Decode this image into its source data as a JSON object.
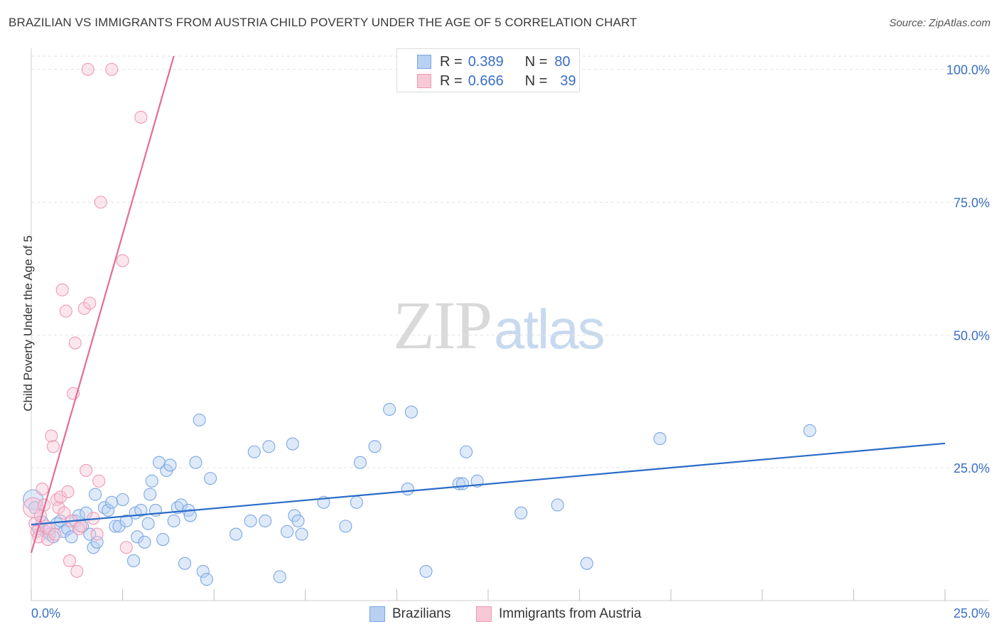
{
  "chart_data": {
    "type": "scatter",
    "title": "BRAZILIAN VS IMMIGRANTS FROM AUSTRIA CHILD POVERTY UNDER THE AGE OF 5 CORRELATION CHART",
    "source": "Source: ZipAtlas.com",
    "ylabel": "Child Poverty Under the Age of 5",
    "xlabel": "",
    "xlim": [
      0,
      25
    ],
    "ylim": [
      0,
      102.5
    ],
    "x_tick_labels": [
      "0.0%",
      "25.0%"
    ],
    "y_tick_labels": [
      "100.0%",
      "75.0%",
      "50.0%",
      "25.0%"
    ],
    "y_tick_values": [
      100,
      75,
      50,
      25
    ],
    "watermark": {
      "part1": "ZIP",
      "part2": "atlas"
    },
    "legend": {
      "r_label": "R =",
      "n_label": "N =",
      "entries": [
        {
          "name": "Brazilians",
          "r": "0.389",
          "n": "80",
          "color": "#7ba7e6",
          "fill": "#b8d0f2"
        },
        {
          "name": "Immigrants from Austria",
          "r": "0.666",
          "n": "39",
          "color": "#ee9ab5",
          "fill": "#f8c8d7"
        }
      ]
    },
    "series": [
      {
        "name": "Brazilians",
        "color": "#7ba7e6",
        "trend": {
          "x1": 0.0,
          "y1": 14.3,
          "x2": 25.0,
          "y2": 29.6,
          "color": "#2a6cc7"
        },
        "points": [
          [
            0.05,
            19.0
          ],
          [
            0.1,
            17.5
          ],
          [
            0.2,
            13.5
          ],
          [
            0.3,
            14.8
          ],
          [
            0.4,
            13.0
          ],
          [
            0.5,
            12.5
          ],
          [
            0.6,
            12.0
          ],
          [
            0.7,
            14.5
          ],
          [
            0.8,
            15.0
          ],
          [
            0.9,
            13.0
          ],
          [
            1.0,
            13.5
          ],
          [
            1.1,
            12.0
          ],
          [
            1.2,
            15.0
          ],
          [
            1.3,
            16.0
          ],
          [
            1.4,
            14.0
          ],
          [
            1.5,
            16.5
          ],
          [
            1.6,
            12.5
          ],
          [
            1.7,
            10.0
          ],
          [
            1.75,
            20.0
          ],
          [
            1.8,
            11.0
          ],
          [
            2.0,
            17.5
          ],
          [
            2.1,
            17.0
          ],
          [
            2.2,
            18.5
          ],
          [
            2.3,
            14.0
          ],
          [
            2.4,
            14.0
          ],
          [
            2.5,
            19.0
          ],
          [
            2.6,
            15.0
          ],
          [
            2.8,
            7.5
          ],
          [
            2.85,
            16.5
          ],
          [
            2.9,
            12.0
          ],
          [
            3.0,
            17.0
          ],
          [
            3.1,
            11.0
          ],
          [
            3.2,
            14.5
          ],
          [
            3.25,
            20.0
          ],
          [
            3.3,
            22.5
          ],
          [
            3.4,
            17.0
          ],
          [
            3.5,
            26.0
          ],
          [
            3.6,
            11.5
          ],
          [
            3.7,
            24.5
          ],
          [
            3.8,
            25.5
          ],
          [
            3.9,
            15.0
          ],
          [
            4.0,
            17.5
          ],
          [
            4.1,
            18.0
          ],
          [
            4.2,
            7.0
          ],
          [
            4.3,
            17.0
          ],
          [
            4.35,
            16.0
          ],
          [
            4.5,
            26.0
          ],
          [
            4.6,
            34.0
          ],
          [
            4.7,
            5.5
          ],
          [
            4.8,
            4.0
          ],
          [
            4.9,
            23.0
          ],
          [
            5.6,
            12.5
          ],
          [
            6.0,
            15.0
          ],
          [
            6.1,
            28.0
          ],
          [
            6.4,
            15.0
          ],
          [
            6.5,
            29.0
          ],
          [
            6.8,
            4.5
          ],
          [
            7.0,
            13.0
          ],
          [
            7.15,
            29.5
          ],
          [
            7.2,
            16.0
          ],
          [
            7.3,
            15.0
          ],
          [
            7.4,
            12.5
          ],
          [
            8.0,
            18.5
          ],
          [
            8.6,
            14.0
          ],
          [
            8.9,
            18.5
          ],
          [
            9.0,
            26.0
          ],
          [
            9.4,
            29.0
          ],
          [
            9.8,
            36.0
          ],
          [
            10.3,
            21.0
          ],
          [
            10.4,
            35.5
          ],
          [
            10.8,
            5.5
          ],
          [
            11.7,
            22.0
          ],
          [
            11.8,
            22.0
          ],
          [
            11.9,
            28.0
          ],
          [
            12.2,
            22.5
          ],
          [
            13.4,
            16.5
          ],
          [
            14.4,
            18.0
          ],
          [
            15.2,
            7.0
          ],
          [
            17.2,
            30.5
          ],
          [
            21.3,
            32.0
          ]
        ]
      },
      {
        "name": "Immigrants from Austria",
        "color": "#ee9ab5",
        "trend": {
          "x1": 0.0,
          "y1": 9.0,
          "x2": 3.9,
          "y2": 102.5,
          "color": "#e56b98"
        },
        "points": [
          [
            0.05,
            17.5
          ],
          [
            0.1,
            14.5
          ],
          [
            0.15,
            13.0
          ],
          [
            0.2,
            12.0
          ],
          [
            0.25,
            16.0
          ],
          [
            0.3,
            21.0
          ],
          [
            0.35,
            18.0
          ],
          [
            0.4,
            14.0
          ],
          [
            0.45,
            11.5
          ],
          [
            0.5,
            13.5
          ],
          [
            0.55,
            31.0
          ],
          [
            0.6,
            29.0
          ],
          [
            0.65,
            12.5
          ],
          [
            0.7,
            19.0
          ],
          [
            0.75,
            17.5
          ],
          [
            0.8,
            19.5
          ],
          [
            0.85,
            58.5
          ],
          [
            0.9,
            16.5
          ],
          [
            0.95,
            54.5
          ],
          [
            1.0,
            20.5
          ],
          [
            1.05,
            7.5
          ],
          [
            1.1,
            15.0
          ],
          [
            1.15,
            39.0
          ],
          [
            1.2,
            48.5
          ],
          [
            1.25,
            5.5
          ],
          [
            1.3,
            13.5
          ],
          [
            1.35,
            14.0
          ],
          [
            1.45,
            55.0
          ],
          [
            1.5,
            24.5
          ],
          [
            1.55,
            100.0
          ],
          [
            1.6,
            56.0
          ],
          [
            1.7,
            15.5
          ],
          [
            1.8,
            12.5
          ],
          [
            1.85,
            22.5
          ],
          [
            1.9,
            75.0
          ],
          [
            2.2,
            100.0
          ],
          [
            2.5,
            64.0
          ],
          [
            2.6,
            10.0
          ],
          [
            3.0,
            91.0
          ]
        ]
      }
    ]
  }
}
